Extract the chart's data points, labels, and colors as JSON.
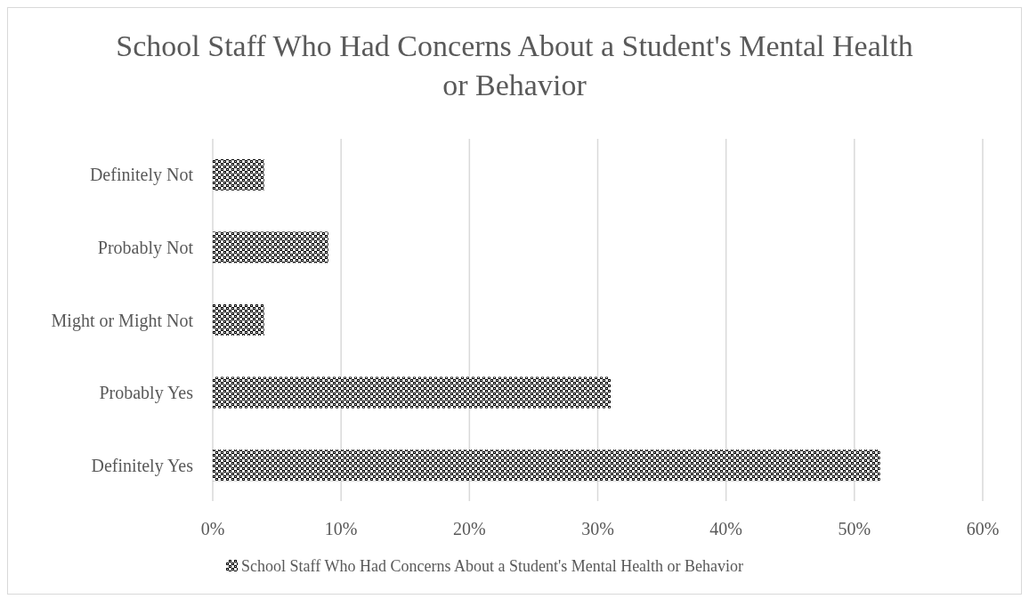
{
  "chart_data": {
    "type": "bar",
    "orientation": "horizontal",
    "title": "School Staff Who Had Concerns About a Student's Mental Health or Behavior",
    "categories": [
      "Definitely Not",
      "Probably Not",
      "Might or Might Not",
      "Probably Yes",
      "Definitely Yes"
    ],
    "series": [
      {
        "name": "School Staff Who Had Concerns About a Student's Mental Health or Behavior",
        "color": "#000000",
        "values": [
          4,
          9,
          4,
          31,
          52
        ]
      }
    ],
    "xlim": [
      0,
      60
    ],
    "xticks": [
      {
        "value": 0,
        "label": "0%"
      },
      {
        "value": 10,
        "label": "10%"
      },
      {
        "value": 20,
        "label": "20%"
      },
      {
        "value": 30,
        "label": "30%"
      },
      {
        "value": 40,
        "label": "40%"
      },
      {
        "value": 50,
        "label": "50%"
      },
      {
        "value": 60,
        "label": "60%"
      }
    ],
    "grid": "x",
    "legend": "bottom"
  }
}
